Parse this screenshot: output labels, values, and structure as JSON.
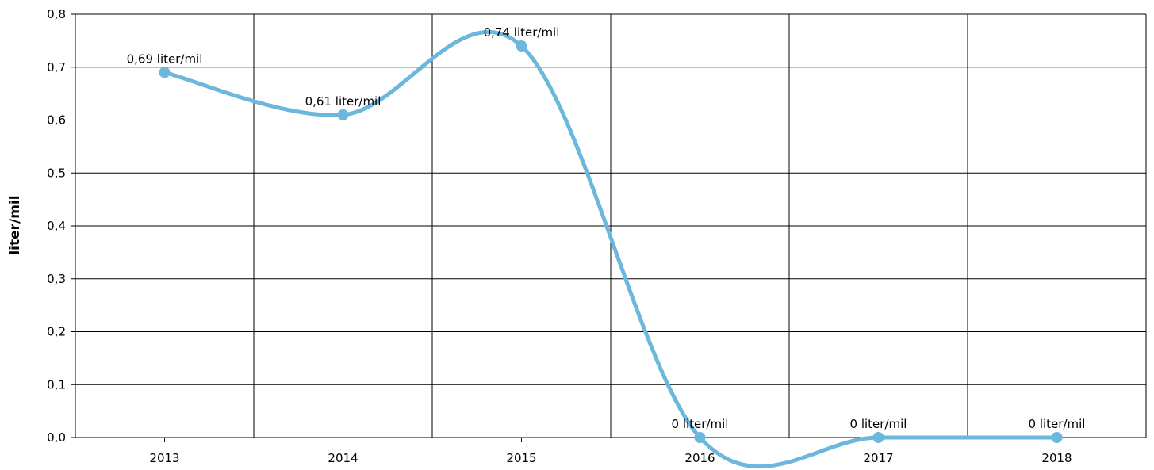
{
  "chart_data": {
    "type": "line",
    "title": "",
    "xlabel": "",
    "ylabel": "liter/mil",
    "categories": [
      "2013",
      "2014",
      "2015",
      "2016",
      "2017",
      "2018"
    ],
    "series": [
      {
        "values": [
          0.69,
          0.61,
          0.74,
          0,
          0,
          0
        ],
        "labels": [
          "0,69 liter/mil",
          "0,61 liter/mil",
          "0,74 liter/mil",
          "0 liter/mil",
          "0 liter/mil",
          "0 liter/mil"
        ],
        "color": "#6bb8dc",
        "smooth": true
      }
    ],
    "ylim": [
      0,
      0.8
    ],
    "yticks": [
      0,
      0.1,
      0.2,
      0.3,
      0.4,
      0.5,
      0.6,
      0.7,
      0.8
    ],
    "ytick_labels": [
      "0,0",
      "0,1",
      "0,2",
      "0,3",
      "0,4",
      "0,5",
      "0,6",
      "0,7",
      "0,8"
    ],
    "grid": true,
    "legend": "none"
  }
}
